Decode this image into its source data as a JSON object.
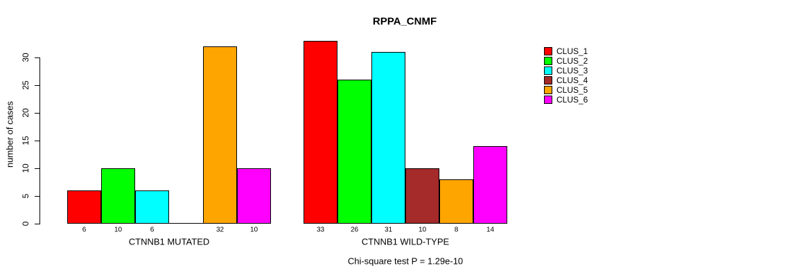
{
  "title": "RPPA_CNMF",
  "footnote": "Chi-square test P = 1.29e-10",
  "chart_data": {
    "type": "bar",
    "title": "RPPA_CNMF",
    "xlabel": "",
    "ylabel": "number of cases",
    "categories": [
      "CTNNB1 MUTATED",
      "CTNNB1 WILD-TYPE"
    ],
    "series": [
      {
        "name": "CLUS_1",
        "color": "#FF0000",
        "values": [
          6,
          33
        ]
      },
      {
        "name": "CLUS_2",
        "color": "#00FF00",
        "values": [
          10,
          26
        ]
      },
      {
        "name": "CLUS_3",
        "color": "#00FFFF",
        "values": [
          6,
          31
        ]
      },
      {
        "name": "CLUS_4",
        "color": "#A52A2A",
        "values": [
          0,
          10
        ]
      },
      {
        "name": "CLUS_5",
        "color": "#FFA500",
        "values": [
          32,
          8
        ]
      },
      {
        "name": "CLUS_6",
        "color": "#FF00FF",
        "values": [
          10,
          14
        ]
      }
    ],
    "yticks": [
      0,
      5,
      10,
      15,
      20,
      25,
      30
    ],
    "ylim": [
      0,
      30
    ],
    "bar_value_labels": true,
    "grid": false,
    "legend_position": "right",
    "annotation": "Chi-square test P = 1.29e-10"
  }
}
